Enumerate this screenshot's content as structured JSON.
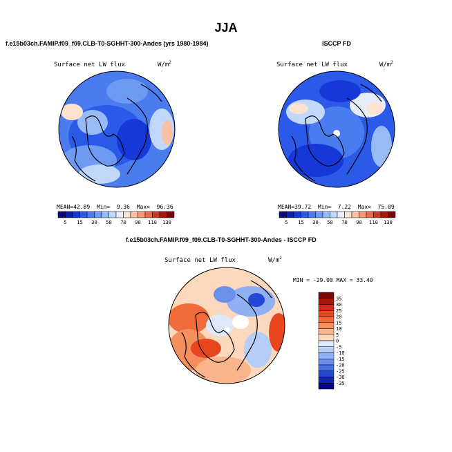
{
  "title": "JJA",
  "panels": [
    {
      "heading": "f.e15b03ch.FAMIP.f09_f09.CLB-T0-SGHHT-300-Andes (yrs 1980-1984)",
      "plot_label": "Surface net LW flux",
      "unit": "W/m",
      "unit_exp": "2",
      "stats": {
        "mean_label": "MEAN=",
        "mean": "42.89",
        "min_label": "Min=",
        "min": "9.36",
        "max_label": "Max=",
        "max": "96.36"
      }
    },
    {
      "heading": "ISCCP FD",
      "plot_label": "Surface net LW flux",
      "unit": "W/m",
      "unit_exp": "2",
      "stats": {
        "mean_label": "MEAN=",
        "mean": "39.72",
        "min_label": "Min=",
        "min": "7.22",
        "max_label": "Max=",
        "max": "75.09"
      }
    },
    {
      "heading": "f.e15b03ch.FAMIP.f09_f09.CLB-T0-SGHHT-300-Andes - ISCCP FD",
      "plot_label": "Surface net LW flux",
      "unit": "W/m",
      "unit_exp": "2",
      "minmax_text": "MIN = -29.00 MAX =  33.40"
    }
  ],
  "chart_data": [
    {
      "type": "heatmap",
      "projection": "north polar stereographic",
      "field": "model",
      "colorbar": {
        "orientation": "horizontal",
        "levels": [
          5,
          10,
          15,
          20,
          30,
          40,
          50,
          60,
          70,
          80,
          90,
          100,
          110,
          120,
          130
        ],
        "tick_labels": [
          "5",
          "15",
          "30",
          "50",
          "70",
          "90",
          "110",
          "130"
        ],
        "colors": [
          "#0a0a7a",
          "#0d1fb0",
          "#1638d8",
          "#2c5ae8",
          "#4a7cf0",
          "#6e9af4",
          "#97bbf7",
          "#c2d8fb",
          "#e6eefc",
          "#fde2d0",
          "#f9c0a4",
          "#f29a78",
          "#e66a4c",
          "#cc3a24",
          "#a8160e",
          "#7a0606"
        ]
      }
    },
    {
      "type": "heatmap",
      "projection": "north polar stereographic",
      "field": "observations",
      "colorbar": {
        "orientation": "horizontal",
        "levels": [
          5,
          10,
          15,
          20,
          30,
          40,
          50,
          60,
          70,
          80,
          90,
          100,
          110,
          120,
          130
        ],
        "tick_labels": [
          "5",
          "15",
          "30",
          "50",
          "70",
          "90",
          "110",
          "130"
        ],
        "colors": [
          "#0a0a7a",
          "#0d1fb0",
          "#1638d8",
          "#2c5ae8",
          "#4a7cf0",
          "#6e9af4",
          "#97bbf7",
          "#c2d8fb",
          "#e6eefc",
          "#fde2d0",
          "#f9c0a4",
          "#f29a78",
          "#e66a4c",
          "#cc3a24",
          "#a8160e",
          "#7a0606"
        ]
      }
    },
    {
      "type": "heatmap",
      "projection": "north polar stereographic",
      "field": "difference",
      "colorbar": {
        "orientation": "vertical",
        "tick_labels": [
          "35",
          "30",
          "25",
          "20",
          "15",
          "10",
          "5",
          "0",
          "-5",
          "-10",
          "-15",
          "-20",
          "-25",
          "-30",
          "-35"
        ],
        "colors": [
          "#7a0606",
          "#a8160e",
          "#cc2a1a",
          "#e8461f",
          "#f06a3a",
          "#f5905e",
          "#f9b48c",
          "#fcd8bc",
          "#dde8fb",
          "#b6cdf7",
          "#8fb0f2",
          "#6a90ec",
          "#4470e4",
          "#2248d4",
          "#1024b0",
          "#08087a"
        ]
      }
    }
  ]
}
